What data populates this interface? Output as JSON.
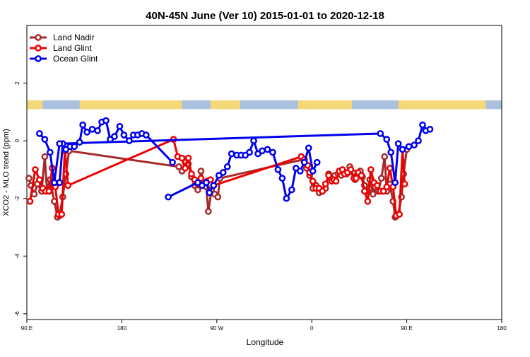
{
  "chart_data": {
    "type": "line",
    "title": "40N-45N June (Ver 10)   2015-01-01 to 2020-12-18",
    "xlabel": "Longitude",
    "ylabel": "XCO2 - MLO trend (ppm)",
    "xlim": [
      90,
      540
    ],
    "ylim": [
      -6.2,
      4.0
    ],
    "xticks": [
      {
        "value": 90,
        "label": "90 E"
      },
      {
        "value": 180,
        "label": "180"
      },
      {
        "value": 270,
        "label": "90 W"
      },
      {
        "value": 360,
        "label": "0"
      },
      {
        "value": 450,
        "label": "90 E"
      },
      {
        "value": 540,
        "label": "180"
      }
    ],
    "yticks": [
      {
        "value": -6,
        "label": "-6"
      },
      {
        "value": -4,
        "label": "-4"
      },
      {
        "value": -2,
        "label": "-2"
      },
      {
        "value": 0,
        "label": "0"
      },
      {
        "value": 2,
        "label": "2"
      }
    ],
    "grid": false,
    "legend_position": "top-left",
    "land_ocean_band": {
      "y_range": [
        1.1,
        1.4
      ],
      "land_color": "#F5D878",
      "ocean_color": "#A9C1DE",
      "land_spans": [
        [
          90,
          105
        ],
        [
          140,
          237
        ],
        [
          264,
          292
        ],
        [
          347,
          398
        ],
        [
          442,
          525
        ]
      ]
    },
    "series": [
      {
        "name": "Land Nadir",
        "color": "#A52A2A",
        "points": [
          [
            92,
            -1.3
          ],
          [
            94,
            -1.55
          ],
          [
            97,
            -1.85
          ],
          [
            100,
            -1.5
          ],
          [
            104,
            -1.75
          ],
          [
            107,
            -0.55
          ],
          [
            109,
            -1.7
          ],
          [
            112,
            -1.35
          ],
          [
            116,
            -2.1
          ],
          [
            119,
            -2.65
          ],
          [
            121,
            -2.6
          ],
          [
            124,
            -1.95
          ],
          [
            127,
            -1.15
          ],
          [
            130,
            -0.35
          ],
          [
            234,
            -0.9
          ],
          [
            237,
            -1.05
          ],
          [
            240,
            -0.75
          ],
          [
            243,
            -0.8
          ],
          [
            246,
            -1.25
          ],
          [
            249,
            -1.55
          ],
          [
            252,
            -1.7
          ],
          [
            255,
            -1.05
          ],
          [
            258,
            -1.5
          ],
          [
            260,
            -1.6
          ],
          [
            262,
            -2.45
          ],
          [
            265,
            -1.7
          ],
          [
            268,
            -1.85
          ],
          [
            271,
            -1.95
          ],
          [
            273,
            -1.3
          ],
          [
            352,
            -0.65
          ],
          [
            355,
            -0.95
          ],
          [
            358,
            -1.2
          ],
          [
            361,
            -1.65
          ],
          [
            364,
            -1.55
          ],
          [
            367,
            -1.8
          ],
          [
            370,
            -1.75
          ],
          [
            373,
            -1.65
          ],
          [
            376,
            -1.15
          ],
          [
            379,
            -1.3
          ],
          [
            382,
            -1.2
          ],
          [
            385,
            -1.15
          ],
          [
            388,
            -1.2
          ],
          [
            391,
            -1.1
          ],
          [
            393,
            -1.15
          ],
          [
            396,
            -0.9
          ],
          [
            399,
            -1.1
          ],
          [
            401,
            -1.35
          ],
          [
            404,
            -1.15
          ],
          [
            406,
            -1.05
          ],
          [
            408,
            -1.25
          ],
          [
            410,
            -1.55
          ],
          [
            413,
            -1.75
          ],
          [
            415,
            -1.35
          ],
          [
            418,
            -1.85
          ],
          [
            420,
            -1.6
          ],
          [
            423,
            -1.75
          ],
          [
            426,
            -1.3
          ],
          [
            429,
            -0.55
          ],
          [
            431,
            -1.75
          ],
          [
            434,
            -1.5
          ],
          [
            437,
            -2.1
          ],
          [
            439,
            -2.65
          ],
          [
            442,
            -2.55
          ],
          [
            445,
            -1.95
          ],
          [
            447,
            -1.15
          ],
          [
            450,
            -0.3
          ]
        ]
      },
      {
        "name": "Land Glint",
        "color": "#EE0000",
        "points": [
          [
            93,
            -2.1
          ],
          [
            98,
            -1.0
          ],
          [
            102,
            -1.35
          ],
          [
            105,
            -1.65
          ],
          [
            108,
            -1.75
          ],
          [
            111,
            -1.75
          ],
          [
            114,
            -0.95
          ],
          [
            117,
            -1.6
          ],
          [
            120,
            -2.55
          ],
          [
            123,
            -2.55
          ],
          [
            126,
            -0.35
          ],
          [
            129,
            -1.55
          ],
          [
            229,
            0.05
          ],
          [
            233,
            -0.55
          ],
          [
            237,
            -0.6
          ],
          [
            240,
            -0.95
          ],
          [
            243,
            -0.6
          ],
          [
            246,
            -1.15
          ],
          [
            249,
            -1.35
          ],
          [
            252,
            -1.5
          ],
          [
            255,
            -1.3
          ],
          [
            258,
            -1.45
          ],
          [
            261,
            -1.4
          ],
          [
            264,
            -1.35
          ],
          [
            267,
            -1.55
          ],
          [
            350,
            -0.55
          ],
          [
            353,
            -0.65
          ],
          [
            356,
            -0.85
          ],
          [
            358,
            -1.1
          ],
          [
            361,
            -1.4
          ],
          [
            364,
            -1.65
          ],
          [
            367,
            -1.65
          ],
          [
            370,
            -1.75
          ],
          [
            373,
            -1.5
          ],
          [
            376,
            -1.2
          ],
          [
            379,
            -1.4
          ],
          [
            381,
            -1.35
          ],
          [
            383,
            -1.4
          ],
          [
            386,
            -1.05
          ],
          [
            389,
            -1.0
          ],
          [
            391,
            -1.15
          ],
          [
            394,
            -1.1
          ],
          [
            397,
            -1.0
          ],
          [
            400,
            -1.3
          ],
          [
            402,
            -1.3
          ],
          [
            404,
            -1.1
          ],
          [
            407,
            -1.2
          ],
          [
            410,
            -1.75
          ],
          [
            413,
            -2.1
          ],
          [
            416,
            -1.0
          ],
          [
            419,
            -1.45
          ],
          [
            422,
            -1.55
          ],
          [
            425,
            -1.75
          ],
          [
            428,
            -1.75
          ],
          [
            431,
            -1.6
          ],
          [
            434,
            -0.95
          ],
          [
            437,
            -1.6
          ],
          [
            440,
            -2.6
          ],
          [
            443,
            -2.55
          ],
          [
            446,
            -0.3
          ],
          [
            448,
            -1.5
          ]
        ]
      },
      {
        "name": "Ocean Glint",
        "color": "#0000EE",
        "points": [
          [
            121,
            -1.45
          ],
          [
            124,
            -0.1
          ],
          [
            127,
            -0.3
          ],
          [
            131,
            -0.2
          ],
          [
            135,
            -0.2
          ],
          [
            140,
            -0.05
          ],
          [
            143,
            0.55
          ],
          [
            147,
            0.3
          ],
          [
            152,
            0.4
          ],
          [
            157,
            0.35
          ],
          [
            161,
            0.65
          ],
          [
            165,
            0.7
          ],
          [
            169,
            0.05
          ],
          [
            173,
            0.15
          ],
          [
            178,
            0.5
          ],
          [
            182,
            0.2
          ],
          [
            187,
            0.0
          ],
          [
            191,
            0.2
          ],
          [
            195,
            0.2
          ],
          [
            199,
            0.25
          ],
          [
            203,
            0.2
          ],
          [
            228,
            -0.75
          ],
          [
            224,
            -1.95
          ],
          [
            252,
            -1.45
          ],
          [
            256,
            -1.55
          ],
          [
            260,
            -1.45
          ],
          [
            263,
            -1.8
          ],
          [
            267,
            -1.55
          ],
          [
            272,
            -1.2
          ],
          [
            276,
            -1.1
          ],
          [
            280,
            -0.9
          ],
          [
            284,
            -0.45
          ],
          [
            289,
            -0.5
          ],
          [
            293,
            -0.5
          ],
          [
            297,
            -0.5
          ],
          [
            301,
            -0.4
          ],
          [
            305,
            0.0
          ],
          [
            309,
            -0.45
          ],
          [
            313,
            -0.35
          ],
          [
            318,
            -0.3
          ],
          [
            323,
            -0.4
          ],
          [
            328,
            -1.0
          ],
          [
            332,
            -1.3
          ],
          [
            336,
            -2.0
          ],
          [
            341,
            -1.7
          ],
          [
            345,
            -0.95
          ],
          [
            349,
            -1.05
          ],
          [
            353,
            -0.75
          ],
          [
            357,
            -0.25
          ],
          [
            361,
            -1.05
          ],
          [
            365,
            -0.75
          ],
          [
            102,
            0.25
          ],
          [
            107,
            0.05
          ],
          [
            112,
            -0.4
          ],
          [
            116,
            -1.45
          ],
          [
            121,
            -0.1
          ],
          [
            425,
            0.25
          ],
          [
            431,
            0.05
          ],
          [
            435,
            -0.4
          ],
          [
            439,
            -1.45
          ],
          [
            442,
            -0.1
          ],
          [
            446,
            -0.3
          ],
          [
            452,
            -0.2
          ],
          [
            457,
            -0.15
          ],
          [
            461,
            0.0
          ],
          [
            465,
            0.55
          ],
          [
            468,
            0.35
          ],
          [
            472,
            0.4
          ]
        ]
      }
    ]
  }
}
